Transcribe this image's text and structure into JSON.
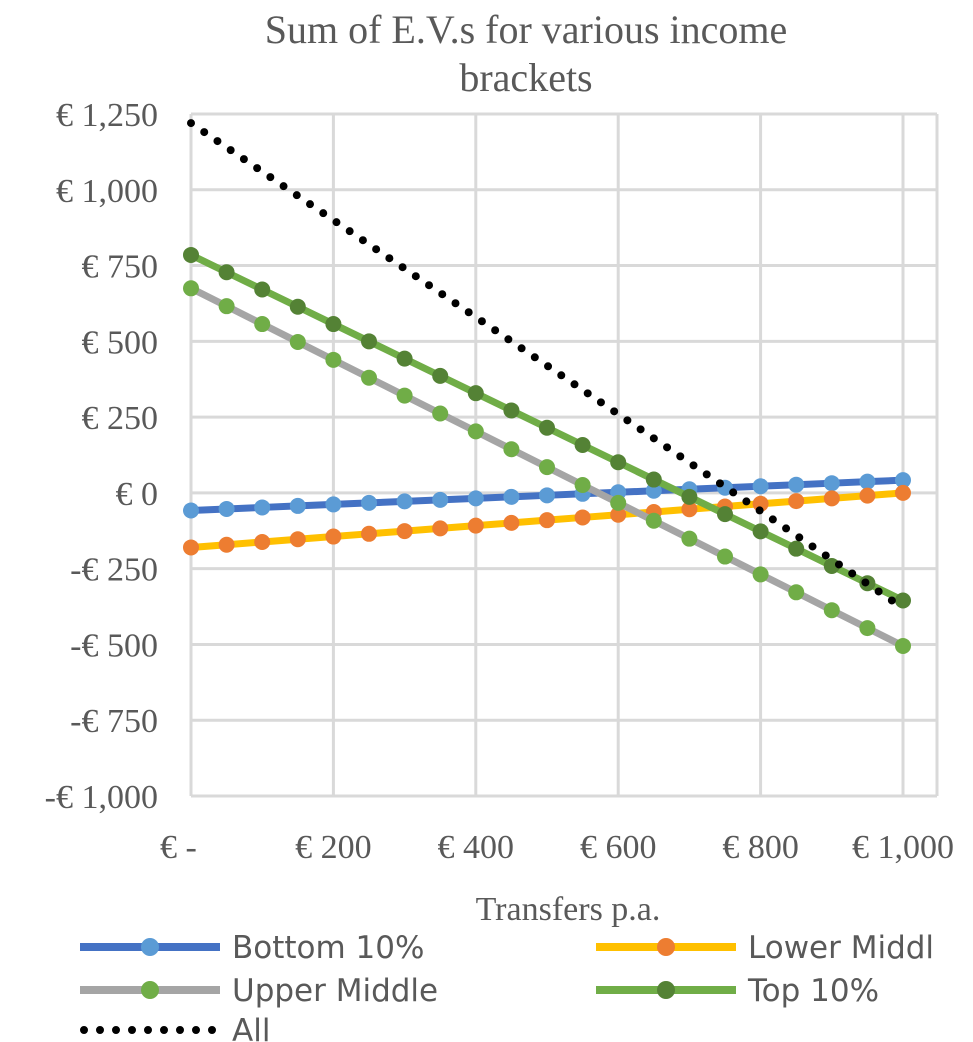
{
  "chart_data": {
    "type": "line",
    "title_line1": "Sum of E.V.s for various income",
    "title_line2": "brackets",
    "xlabel": "Transfers p.a.",
    "ylabel": "",
    "xlim": [
      0,
      1000
    ],
    "ylim": [
      -1000,
      1250
    ],
    "x_ticks": [
      0,
      200,
      400,
      600,
      800,
      1000
    ],
    "x_tick_labels": [
      "€ -",
      "€ 200",
      "€ 400",
      "€ 600",
      "€ 800",
      "€ 1,000"
    ],
    "y_ticks": [
      1250,
      1000,
      750,
      500,
      250,
      0,
      -250,
      -500,
      -750,
      -1000
    ],
    "y_tick_labels": [
      "€ 1,250",
      "€ 1,000",
      "€ 750",
      "€ 500",
      "€ 250",
      "€ 0",
      "-€ 250",
      "-€ 500",
      "-€ 750",
      "-€ 1,000"
    ],
    "grid": true,
    "legend_position": "bottom",
    "x": [
      0,
      50,
      100,
      150,
      200,
      250,
      300,
      350,
      400,
      450,
      500,
      550,
      600,
      650,
      700,
      750,
      800,
      850,
      900,
      950,
      1000
    ],
    "series": [
      {
        "name": "Bottom 10%",
        "line_color": "#4472C4",
        "marker_color": "#5B9BD5",
        "marker": "circle",
        "values": [
          -58,
          -53,
          -48,
          -43,
          -38,
          -33,
          -28,
          -23,
          -18,
          -13,
          -8,
          -3,
          2,
          7,
          12,
          17,
          22,
          27,
          32,
          37,
          42
        ]
      },
      {
        "name": "Lower Middl",
        "line_color": "#FFC000",
        "marker_color": "#ED7D31",
        "marker": "circle",
        "values": [
          -180,
          -171,
          -162,
          -153,
          -144,
          -135,
          -126,
          -117,
          -108,
          -99,
          -90,
          -81,
          -72,
          -63,
          -54,
          -45,
          -36,
          -27,
          -18,
          -9,
          0
        ]
      },
      {
        "name": "Upper Middle",
        "line_color": "#A5A5A5",
        "marker_color": "#70AD47",
        "marker": "circle",
        "values": [
          675,
          616,
          557,
          498,
          439,
          380,
          321,
          262,
          203,
          144,
          85,
          26,
          -33,
          -92,
          -151,
          -210,
          -269,
          -328,
          -387,
          -446,
          -505
        ]
      },
      {
        "name": "Top 10%",
        "line_color": "#70AD47",
        "marker_color": "#548235",
        "marker": "circle",
        "values": [
          785,
          728,
          671,
          614,
          557,
          500,
          443,
          386,
          329,
          272,
          215,
          158,
          101,
          44,
          -13,
          -70,
          -127,
          -184,
          -241,
          -298,
          -355
        ]
      },
      {
        "name": "All",
        "line_color": "#000000",
        "marker": "none",
        "dash": "dotted",
        "values": [
          1220,
          1140,
          1060,
          980,
          900,
          820,
          740,
          660,
          580,
          500,
          420,
          340,
          260,
          180,
          100,
          20,
          -60,
          -140,
          -220,
          -300,
          -380
        ]
      }
    ]
  }
}
